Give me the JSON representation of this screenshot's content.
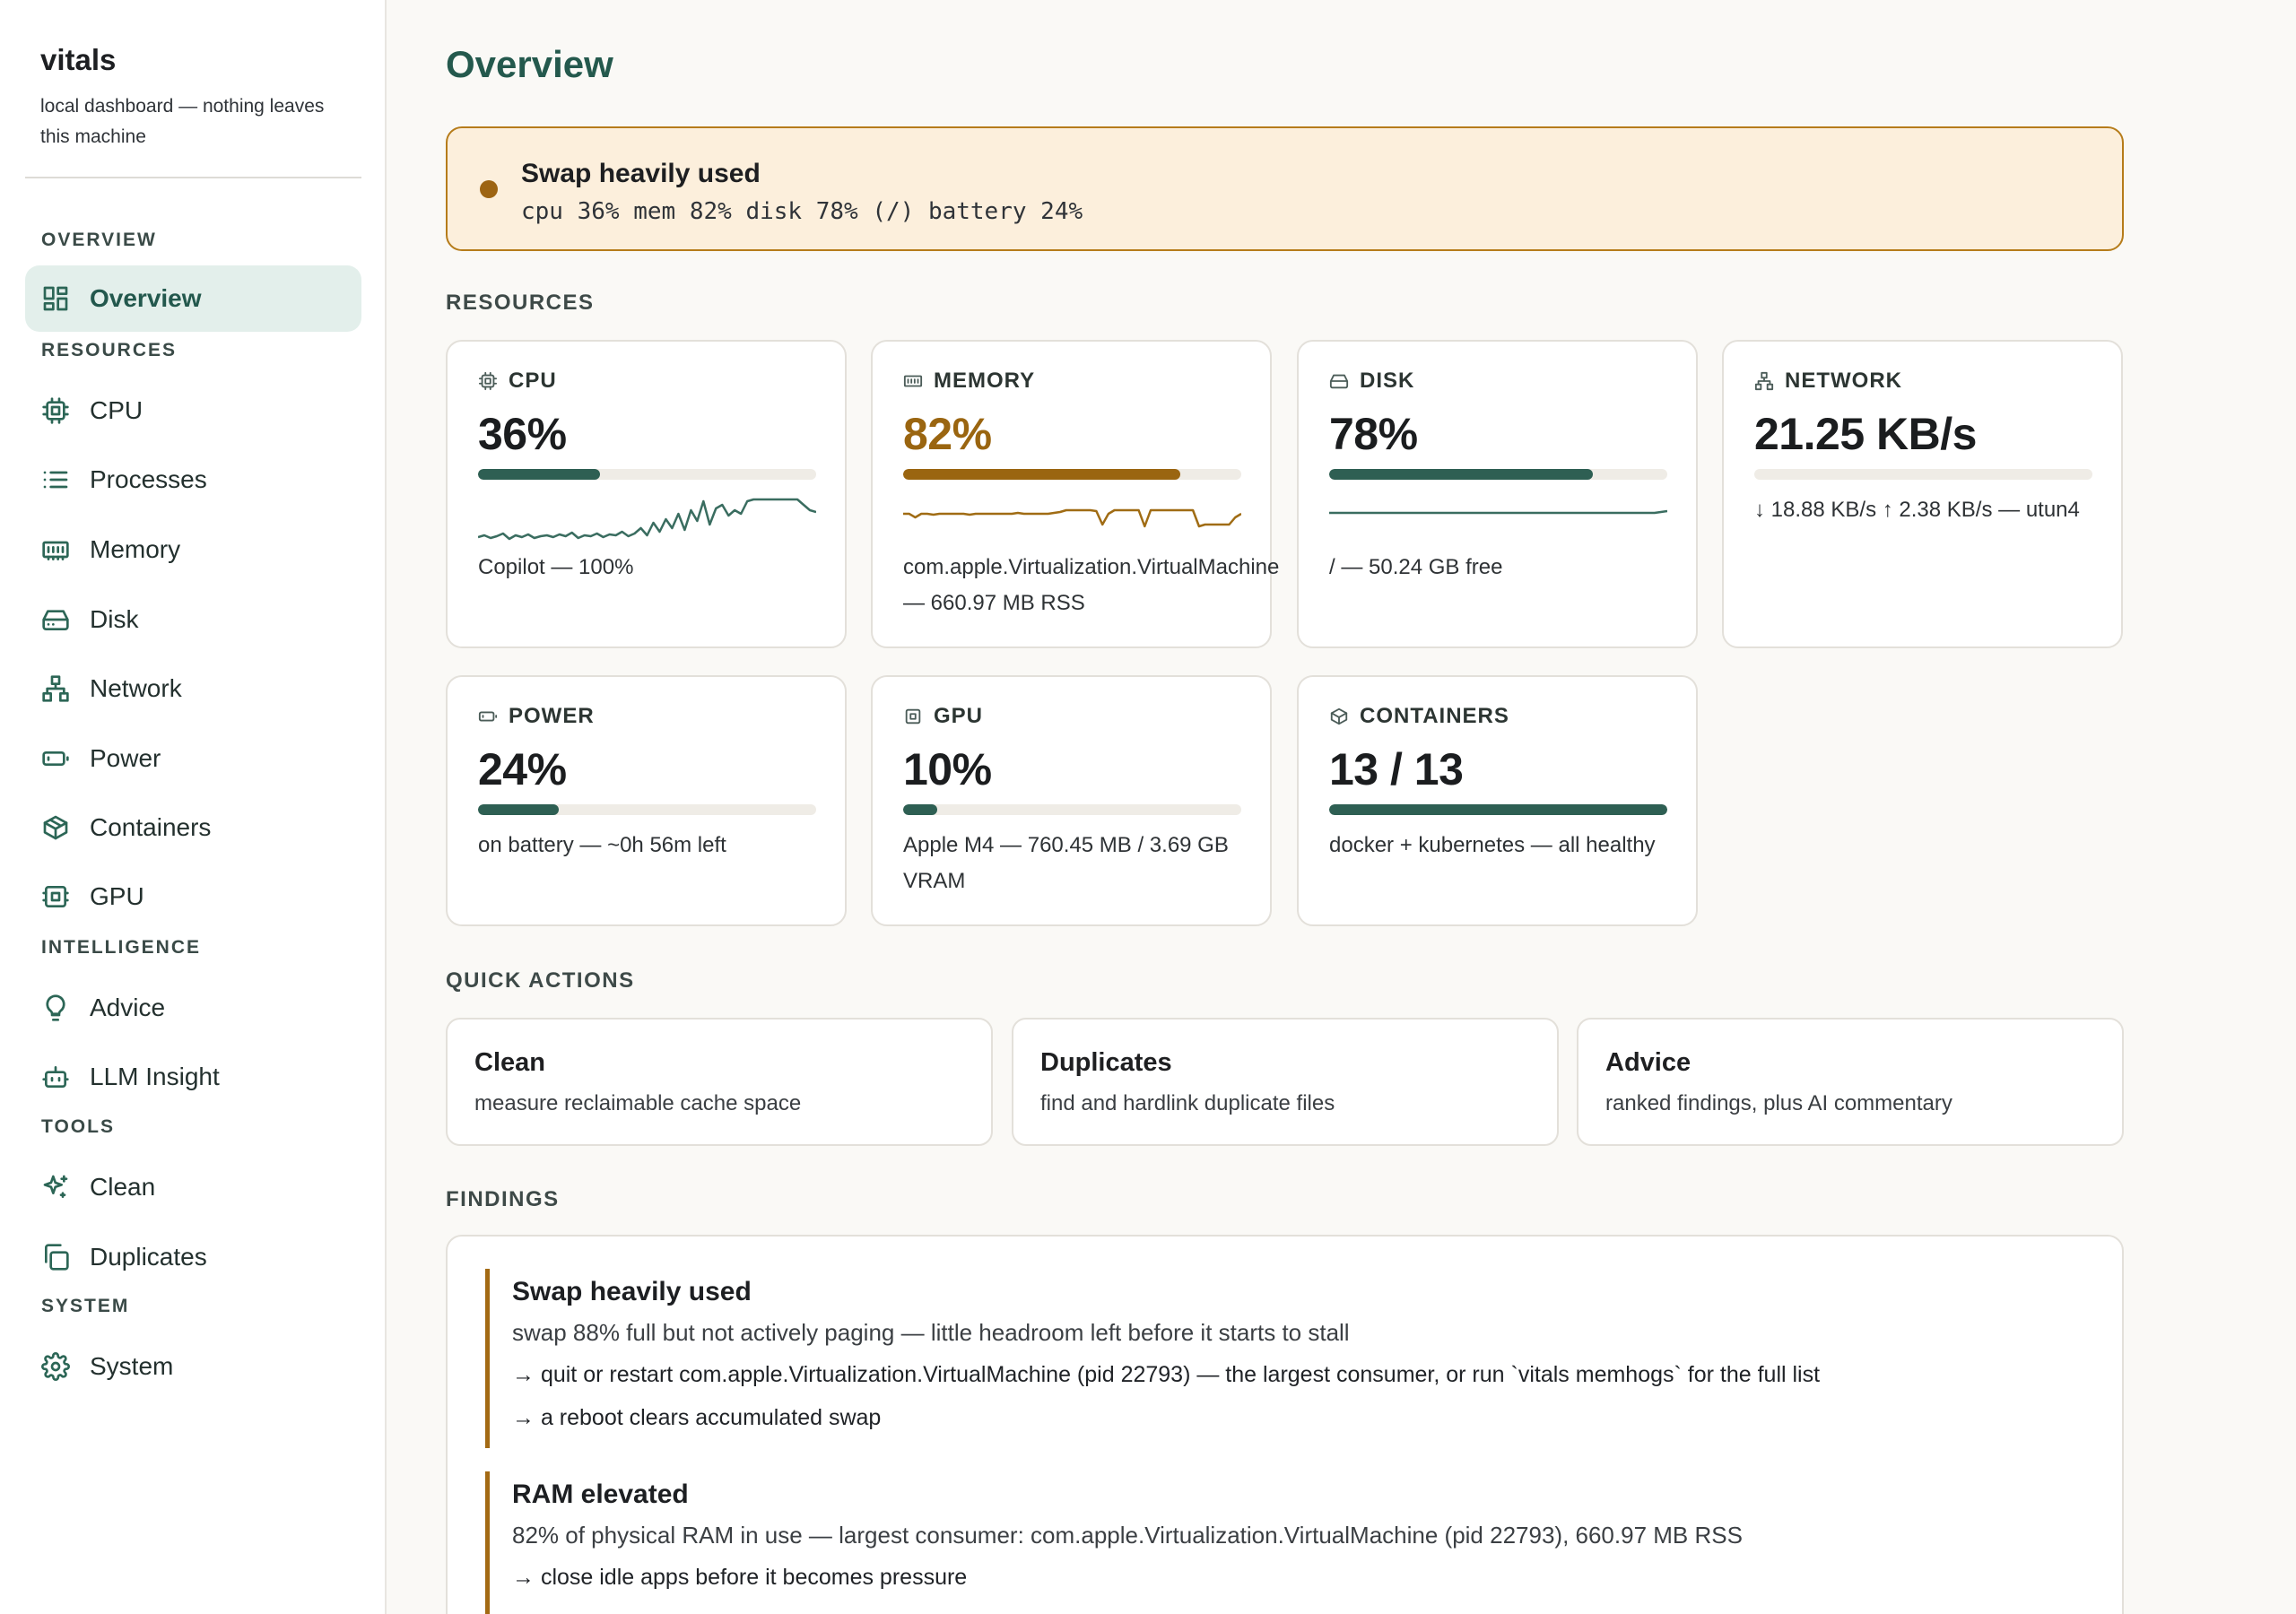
{
  "brand": {
    "title": "vitals",
    "subtitle": "local dashboard — nothing leaves this machine"
  },
  "nav": {
    "sections": {
      "overview": "OVERVIEW",
      "resources": "RESOURCES",
      "intelligence": "INTELLIGENCE",
      "tools": "TOOLS",
      "system": "SYSTEM"
    },
    "items": {
      "overview": "Overview",
      "cpu": "CPU",
      "processes": "Processes",
      "memory": "Memory",
      "disk": "Disk",
      "network": "Network",
      "power": "Power",
      "containers": "Containers",
      "gpu": "GPU",
      "advice": "Advice",
      "llm": "LLM Insight",
      "clean": "Clean",
      "duplicates": "Duplicates",
      "system": "System"
    },
    "active": "overview"
  },
  "page": {
    "title": "Overview"
  },
  "alert": {
    "title": "Swap heavily used",
    "detail": "cpu 36% mem 82% disk 78% (/) battery 24%",
    "color": "#9d6412"
  },
  "sections": {
    "resources": "RESOURCES",
    "quick_actions": "QUICK ACTIONS",
    "findings": "FINDINGS"
  },
  "cards": {
    "cpu": {
      "label": "CPU",
      "value": "36%",
      "level": 0.36,
      "note": "Copilot — 100%",
      "icon": "chip-icon",
      "spark": [
        4,
        6,
        3,
        5,
        8,
        2,
        6,
        4,
        7,
        3,
        5,
        6,
        4,
        7,
        5,
        9,
        3,
        6,
        5,
        8,
        4,
        7,
        6,
        10,
        5,
        8,
        14,
        6,
        20,
        10,
        24,
        14,
        30,
        12,
        34,
        22,
        44,
        18,
        36,
        40,
        28,
        34,
        30,
        44,
        46,
        46,
        46,
        46,
        46,
        46,
        46,
        46,
        40,
        34,
        32
      ]
    },
    "memory": {
      "label": "MEMORY",
      "value": "82%",
      "level": 0.82,
      "note1": "com.apple.Virtualization.VirtualMachine",
      "note2": "— 660.97 MB RSS",
      "icon": "memory-icon",
      "spark": [
        30,
        30,
        26,
        30,
        30,
        29,
        30,
        30,
        30,
        30,
        30,
        29,
        30,
        30,
        30,
        30,
        30,
        30,
        30,
        31,
        30,
        30,
        30,
        30,
        30,
        31,
        32,
        34,
        34,
        34,
        34,
        34,
        33,
        18,
        30,
        34,
        34,
        34,
        34,
        34,
        16,
        34,
        34,
        34,
        34,
        34,
        34,
        34,
        34,
        16,
        18,
        18,
        18,
        18,
        18,
        26,
        30
      ]
    },
    "disk": {
      "label": "DISK",
      "value": "78%",
      "level": 0.78,
      "note": "/ — 50.24 GB free",
      "icon": "drive-icon",
      "spark": [
        31,
        31,
        31,
        31,
        31,
        31,
        31,
        31,
        31,
        31,
        31,
        31,
        31,
        31,
        31,
        31,
        31,
        31,
        31,
        31,
        31,
        31,
        31,
        31,
        31,
        31,
        31,
        31,
        31,
        31,
        31,
        31,
        31,
        31,
        31,
        31,
        31,
        31,
        31,
        31,
        31,
        31,
        31,
        31,
        31,
        31,
        31,
        31,
        31,
        31,
        31,
        31,
        32,
        33
      ]
    },
    "network": {
      "label": "NETWORK",
      "value": "21.25 KB/s",
      "level": 0.0,
      "note": "↓ 18.88 KB/s ↑ 2.38 KB/s — utun4",
      "icon": "network-icon"
    },
    "power": {
      "label": "POWER",
      "value": "24%",
      "level": 0.24,
      "note": "on battery — ~0h 56m left",
      "icon": "battery-icon"
    },
    "gpu": {
      "label": "GPU",
      "value": "10%",
      "level": 0.1,
      "note1": "Apple M4 — 760.45 MB / 3.69 GB",
      "note2": "VRAM",
      "icon": "chip-icon"
    },
    "containers": {
      "label": "CONTAINERS",
      "value": "13 / 13",
      "level": 1.0,
      "note": "docker + kubernetes — all healthy",
      "icon": "box-icon"
    }
  },
  "actions": [
    {
      "title": "Clean",
      "desc": "measure reclaimable cache space"
    },
    {
      "title": "Duplicates",
      "desc": "find and hardlink duplicate files"
    },
    {
      "title": "Advice",
      "desc": "ranked findings, plus AI commentary"
    }
  ],
  "findings": [
    {
      "title": "Swap heavily used",
      "desc": "swap 88% full but not actively paging — little headroom left before it starts to stall",
      "steps": [
        "→ quit or restart com.apple.Virtualization.VirtualMachine (pid 22793) — the largest consumer, or run `vitals memhogs` for the full list",
        "→ a reboot clears accumulated swap"
      ]
    },
    {
      "title": "RAM elevated",
      "desc": "82% of physical RAM in use — largest consumer: com.apple.Virtualization.VirtualMachine (pid 22793), 660.97 MB RSS",
      "steps": [
        "→ close idle apps before it becomes pressure"
      ]
    }
  ],
  "colors": {
    "accent": "#24594d",
    "bar": "#2e5f53",
    "warn": "#9a6510",
    "alert_bg": "#fcefdc",
    "active_nav_bg": "#e3efeb"
  }
}
